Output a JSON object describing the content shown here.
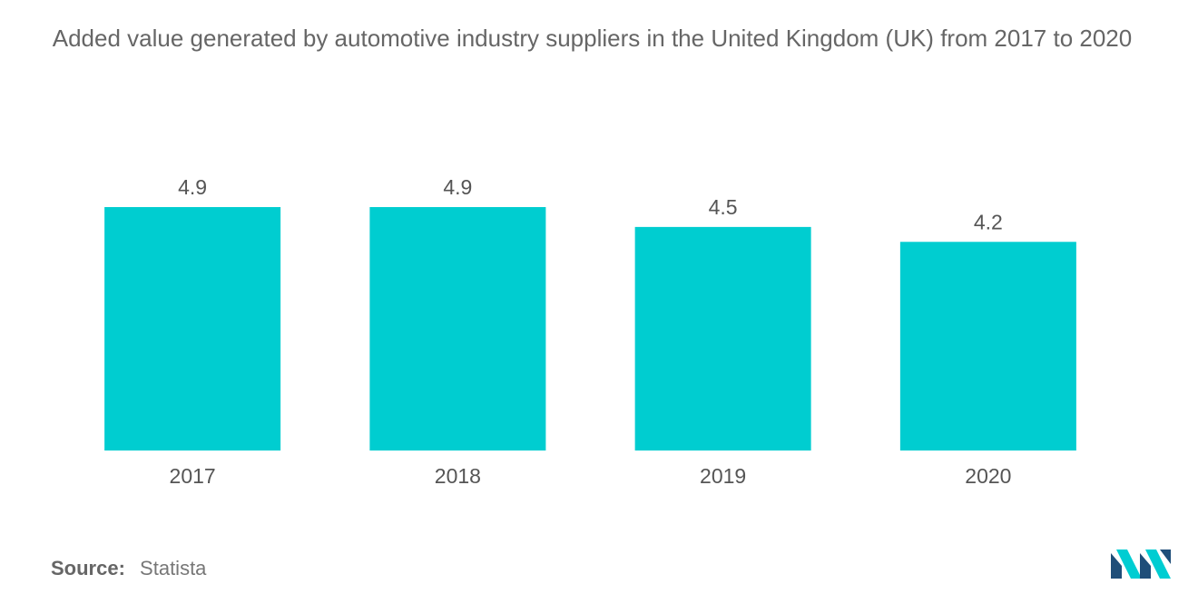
{
  "title": "Added value generated by automotive industry suppliers in the United Kingdom (UK) from 2017 to 2020",
  "source": {
    "label": "Source:",
    "value": "Statista"
  },
  "logo": {
    "icon": "mordor-intelligence-logo-icon",
    "colors": [
      "#1f4e79",
      "#00cdd2"
    ]
  },
  "colors": {
    "bar": "#00cdd0",
    "text": "#555555"
  },
  "chart_data": {
    "type": "bar",
    "categories": [
      "2017",
      "2018",
      "2019",
      "2020"
    ],
    "values": [
      4.9,
      4.9,
      4.5,
      4.2
    ],
    "data_labels": [
      "4.9",
      "4.9",
      "4.5",
      "4.2"
    ],
    "title": "Added value generated by automotive industry suppliers in the United Kingdom (UK) from 2017 to 2020",
    "xlabel": "",
    "ylabel": "",
    "ylim": [
      0,
      4.9
    ],
    "grid": false,
    "legend": "none"
  }
}
